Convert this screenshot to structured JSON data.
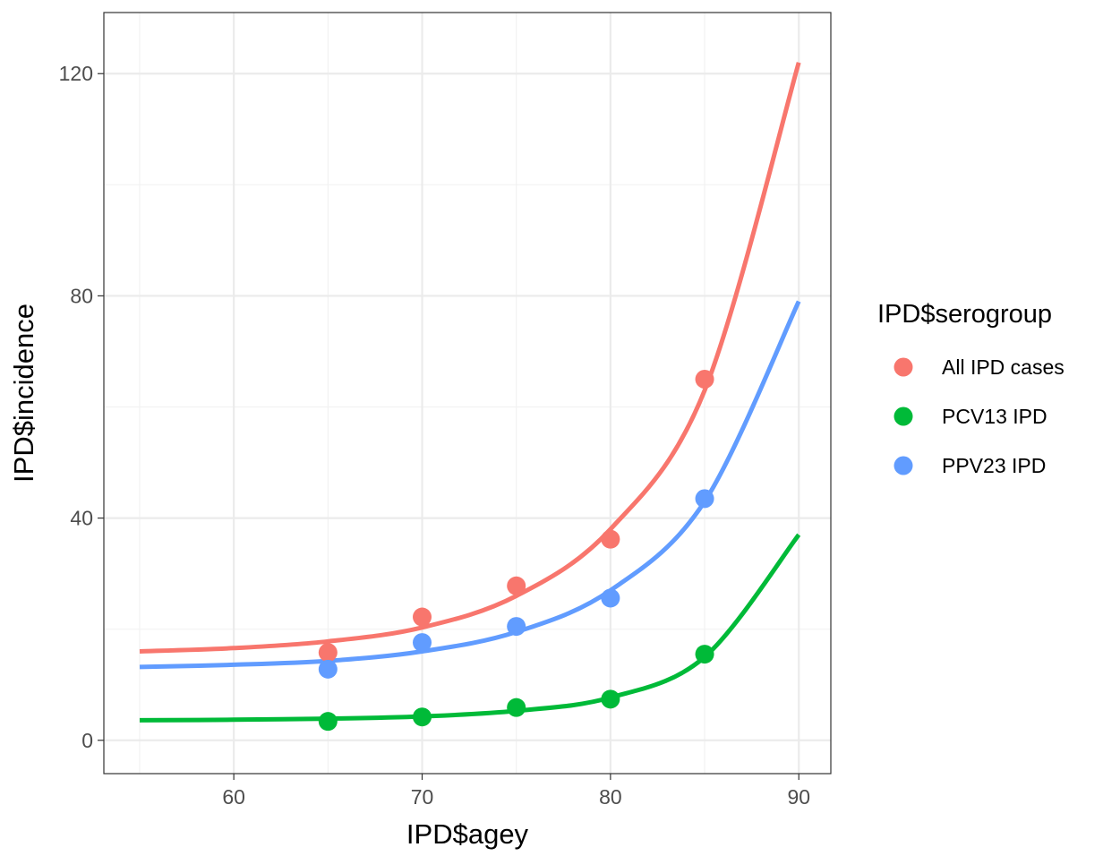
{
  "chart_data": {
    "type": "scatter",
    "xlabel": "IPD$agey",
    "ylabel": "IPD$incidence",
    "xlim": [
      53.1,
      91.7
    ],
    "ylim": [
      -6,
      131
    ],
    "x_ticks": [
      60,
      70,
      80,
      90
    ],
    "y_ticks": [
      0,
      40,
      80,
      120
    ],
    "grid": true,
    "legend": {
      "title": "IPD$serogroup",
      "placement": "right",
      "entries": [
        "All IPD cases",
        "PCV13 IPD",
        "PPV23 IPD"
      ]
    },
    "series": [
      {
        "name": "All IPD cases",
        "color": "#F8766D",
        "points": [
          [
            65,
            15.8
          ],
          [
            70,
            22.2
          ],
          [
            75,
            27.8
          ],
          [
            80,
            36.2
          ],
          [
            85,
            65.0
          ]
        ],
        "fit_curve": [
          [
            55,
            16.0
          ],
          [
            60,
            16.6
          ],
          [
            65,
            17.8
          ],
          [
            70,
            20.3
          ],
          [
            75,
            26.0
          ],
          [
            80,
            38.0
          ],
          [
            85,
            63.0
          ],
          [
            90,
            122.0
          ]
        ]
      },
      {
        "name": "PCV13 IPD",
        "color": "#00BA38",
        "points": [
          [
            65,
            3.4
          ],
          [
            70,
            4.2
          ],
          [
            75,
            5.9
          ],
          [
            80,
            7.4
          ],
          [
            85,
            15.5
          ]
        ],
        "fit_curve": [
          [
            55,
            3.6
          ],
          [
            60,
            3.7
          ],
          [
            65,
            3.9
          ],
          [
            70,
            4.3
          ],
          [
            75,
            5.3
          ],
          [
            80,
            7.7
          ],
          [
            85,
            15.0
          ],
          [
            90,
            37.0
          ]
        ]
      },
      {
        "name": "PPV23 IPD",
        "color": "#619CFF",
        "points": [
          [
            65,
            12.8
          ],
          [
            70,
            17.6
          ],
          [
            75,
            20.5
          ],
          [
            80,
            25.6
          ],
          [
            85,
            43.5
          ]
        ],
        "fit_curve": [
          [
            55,
            13.2
          ],
          [
            60,
            13.6
          ],
          [
            65,
            14.3
          ],
          [
            70,
            16.0
          ],
          [
            75,
            19.5
          ],
          [
            80,
            27.0
          ],
          [
            85,
            43.0
          ],
          [
            90,
            79.0
          ]
        ]
      }
    ]
  }
}
